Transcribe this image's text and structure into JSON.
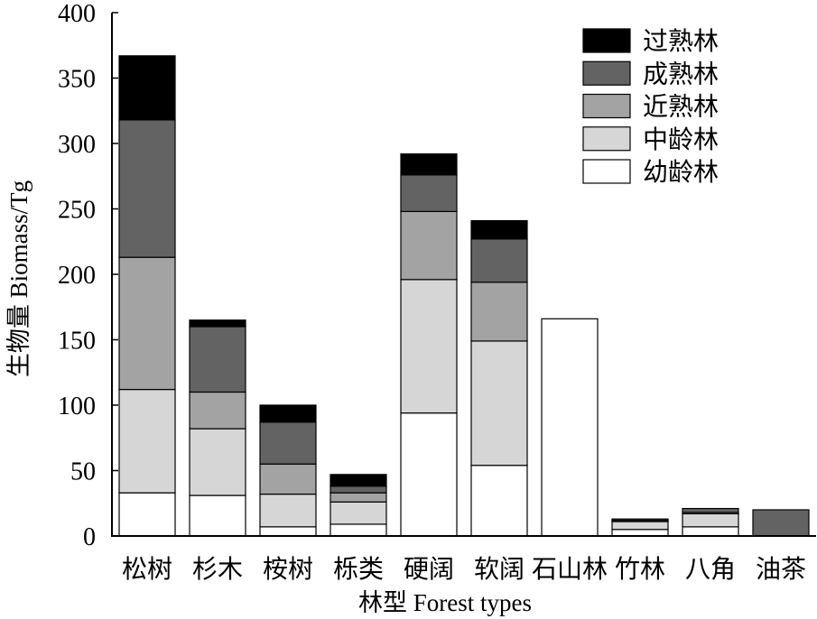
{
  "chart_data": {
    "type": "bar",
    "stacked": true,
    "title": "",
    "xlabel": "林型 Forest types",
    "ylabel": "生物量 Biomass/Tg",
    "ylim": [
      0,
      400
    ],
    "yticks": [
      0,
      50,
      100,
      150,
      200,
      250,
      300,
      350,
      400
    ],
    "grid": false,
    "legend_position": "top-right",
    "categories": [
      "松树",
      "杉木",
      "桉树",
      "栎类",
      "硬阔",
      "软阔",
      "石山林",
      "竹林",
      "八角",
      "油茶"
    ],
    "series": [
      {
        "name": "幼龄林",
        "color": "#ffffff",
        "values": [
          33,
          31,
          7,
          9,
          94,
          54,
          166,
          5,
          7,
          0
        ]
      },
      {
        "name": "中龄林",
        "color": "#d6d6d6",
        "values": [
          79,
          51,
          25,
          17,
          102,
          95,
          0,
          6,
          10,
          0
        ]
      },
      {
        "name": "近熟林",
        "color": "#a3a3a3",
        "values": [
          101,
          28,
          23,
          7,
          52,
          45,
          0,
          1,
          1,
          0
        ]
      },
      {
        "name": "成熟林",
        "color": "#636363",
        "values": [
          105,
          50,
          32,
          5,
          28,
          33,
          0,
          1,
          3,
          20
        ]
      },
      {
        "name": "过熟林",
        "color": "#000000",
        "values": [
          49,
          5,
          13,
          9,
          16,
          14,
          0,
          0,
          0,
          0
        ]
      }
    ]
  }
}
